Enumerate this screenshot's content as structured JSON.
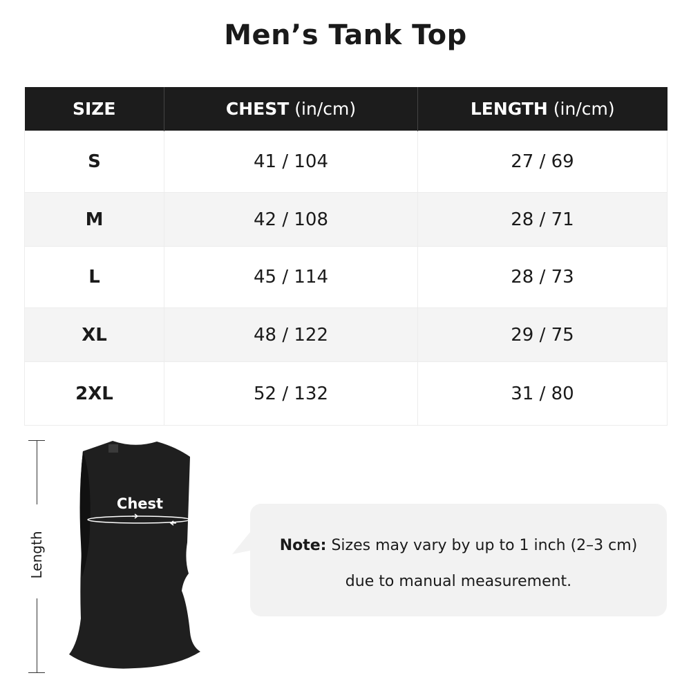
{
  "title": "Men’s Tank Top",
  "table": {
    "headers": [
      {
        "label": "SIZE",
        "unit": ""
      },
      {
        "label": "CHEST",
        "unit": " (in/cm)"
      },
      {
        "label": "LENGTH",
        "unit": " (in/cm)"
      }
    ],
    "rows": [
      {
        "size": "S",
        "chest": "41 / 104",
        "length": "27 / 69"
      },
      {
        "size": "M",
        "chest": "42 / 108",
        "length": "28 / 71"
      },
      {
        "size": "L",
        "chest": "45 / 114",
        "length": "28 / 73"
      },
      {
        "size": "XL",
        "chest": "48 / 122",
        "length": "29 / 75"
      },
      {
        "size": "2XL",
        "chest": "52 / 132",
        "length": "31 / 80"
      }
    ]
  },
  "diagram": {
    "length_label": "Length",
    "chest_label": "Chest"
  },
  "note": {
    "prefix": "Note:",
    "line1": " Sizes may vary by up to 1 inch (2–3 cm)",
    "line2": "due to manual measurement."
  },
  "colors": {
    "header_bg": "#1c1c1c",
    "row_alt": "#f4f4f4",
    "note_bg": "#f2f2f2"
  }
}
